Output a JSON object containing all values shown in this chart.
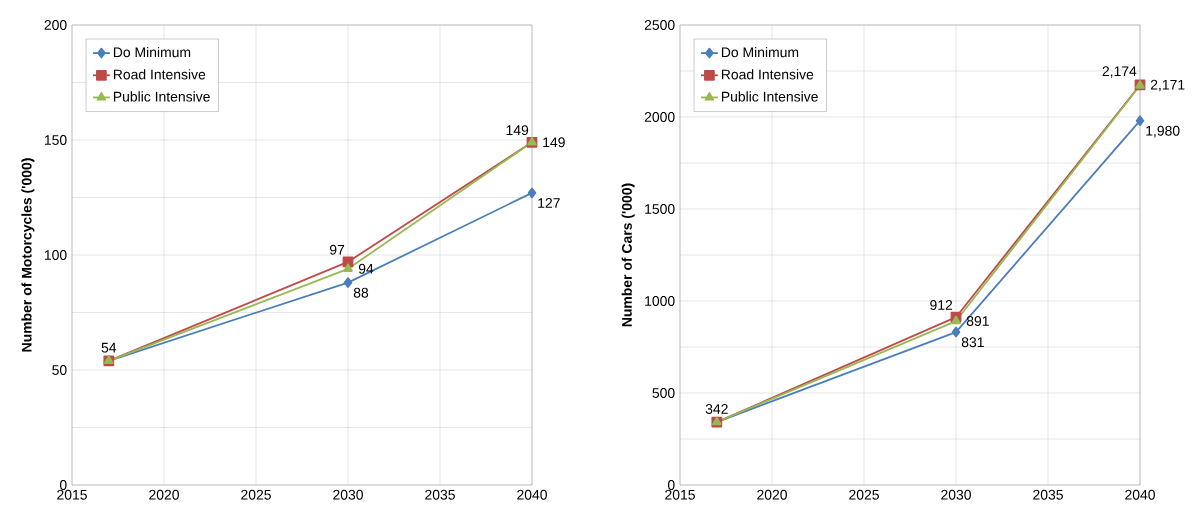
{
  "chart_data": [
    {
      "type": "line",
      "ylabel": "Number of Motorcycles  ('000)",
      "x": [
        2017,
        2030,
        2040
      ],
      "xlim": [
        2015,
        2040
      ],
      "xticks": [
        2015,
        2020,
        2025,
        2030,
        2035,
        2040
      ],
      "ylim": [
        0,
        200
      ],
      "yticks": [
        0,
        50,
        100,
        150,
        200
      ],
      "grid": true,
      "legend": "top left",
      "series": [
        {
          "name": "Do Minimum",
          "color": "#4a7ebb",
          "marker": "diamond",
          "values": [
            54,
            88,
            127
          ],
          "value_labels": [
            null,
            "88",
            "127"
          ]
        },
        {
          "name": "Road Intensive",
          "color": "#be4b48",
          "marker": "square",
          "values": [
            54,
            97,
            149
          ],
          "value_labels": [
            "54",
            "97",
            "149"
          ]
        },
        {
          "name": "Public Intensive",
          "color": "#98b954",
          "marker": "triangle",
          "values": [
            54,
            94,
            149
          ],
          "value_labels": [
            null,
            "94",
            "149"
          ]
        }
      ]
    },
    {
      "type": "line",
      "ylabel": "Number of Cars  ('000)",
      "x": [
        2017,
        2030,
        2040
      ],
      "xlim": [
        2015,
        2040
      ],
      "xticks": [
        2015,
        2020,
        2025,
        2030,
        2035,
        2040
      ],
      "ylim": [
        0,
        2500
      ],
      "yticks": [
        0,
        500,
        1000,
        1500,
        2000,
        2500
      ],
      "grid": true,
      "legend": "top left",
      "series": [
        {
          "name": "Do Minimum",
          "color": "#4a7ebb",
          "marker": "diamond",
          "values": [
            342,
            831,
            1980
          ],
          "value_labels": [
            null,
            "831",
            "1,980"
          ]
        },
        {
          "name": "Road Intensive",
          "color": "#be4b48",
          "marker": "square",
          "values": [
            342,
            912,
            2174
          ],
          "value_labels": [
            "342",
            "912",
            "2,174"
          ]
        },
        {
          "name": "Public Intensive",
          "color": "#98b954",
          "marker": "triangle",
          "values": [
            342,
            891,
            2171
          ],
          "value_labels": [
            null,
            "891",
            "2,171"
          ]
        }
      ]
    }
  ]
}
